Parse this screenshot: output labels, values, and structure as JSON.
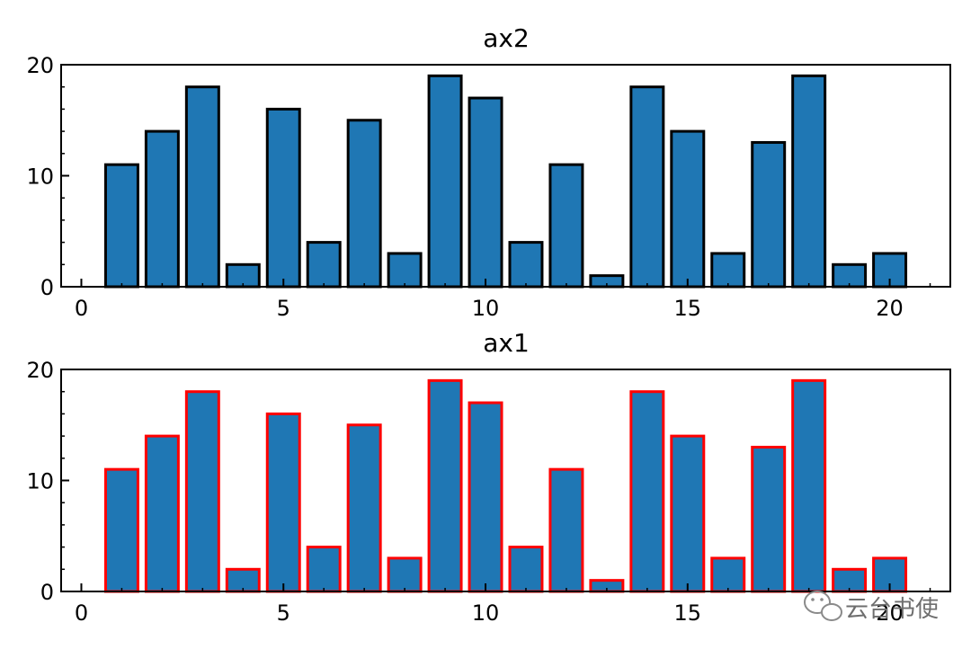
{
  "chart_data": [
    {
      "type": "bar",
      "title": "ax2",
      "x": [
        1,
        2,
        3,
        4,
        5,
        6,
        7,
        8,
        9,
        10,
        11,
        12,
        13,
        14,
        15,
        16,
        17,
        18,
        19,
        20
      ],
      "values": [
        11,
        14,
        18,
        2,
        16,
        4,
        15,
        3,
        19,
        17,
        4,
        11,
        1,
        18,
        14,
        3,
        13,
        19,
        2,
        3
      ],
      "xlim": [
        -0.5,
        21.5
      ],
      "ylim": [
        0,
        20
      ],
      "xticks": [
        0,
        5,
        10,
        15,
        20
      ],
      "yticks": [
        0,
        10,
        20
      ],
      "xlabel": "",
      "ylabel": "",
      "bar_color": "#1f77b4",
      "edge_color": "#000000",
      "grid": false
    },
    {
      "type": "bar",
      "title": "ax1",
      "x": [
        1,
        2,
        3,
        4,
        5,
        6,
        7,
        8,
        9,
        10,
        11,
        12,
        13,
        14,
        15,
        16,
        17,
        18,
        19,
        20
      ],
      "values": [
        11,
        14,
        18,
        2,
        16,
        4,
        15,
        3,
        19,
        17,
        4,
        11,
        1,
        18,
        14,
        3,
        13,
        19,
        2,
        3
      ],
      "xlim": [
        -0.5,
        21.5
      ],
      "ylim": [
        0,
        20
      ],
      "xticks": [
        0,
        5,
        10,
        15,
        20
      ],
      "yticks": [
        0,
        10,
        20
      ],
      "xlabel": "",
      "ylabel": "",
      "bar_color": "#1f77b4",
      "edge_color": "#ff0000",
      "grid": false
    }
  ],
  "watermark": {
    "text": "云台书使",
    "icon": "wechat-icon"
  }
}
